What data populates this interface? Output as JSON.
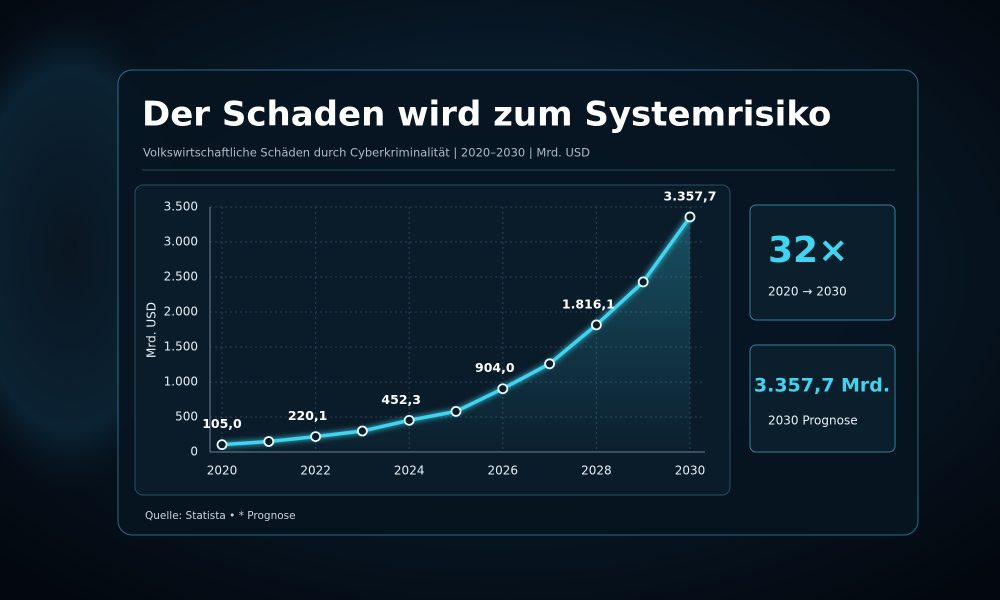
{
  "chart_data": {
    "type": "line",
    "title": "Der Schaden wird zum Systemrisiko",
    "subtitle": "Volkswirtschaftliche Schäden durch Cyberkriminalität  |  2020–2030  |  Mrd. USD",
    "y_label": "Mrd. USD",
    "source": "Quelle: Statista  •  * Prognose",
    "x": [
      2020,
      2021,
      2022,
      2023,
      2024,
      2025,
      2026,
      2027,
      2028,
      2029,
      2030
    ],
    "values": [
      105.0,
      150,
      220.1,
      300,
      452.3,
      580,
      904.0,
      1260,
      1816.1,
      2430,
      3357.7
    ],
    "value_labels": [
      "105,0",
      null,
      "220,1",
      null,
      "452,3",
      null,
      "904,0",
      null,
      "1.816,1",
      null,
      "3.357,7"
    ],
    "color": "#3fd4f0",
    "xlim": [
      2020,
      2030
    ],
    "xticks": [
      2020,
      2022,
      2024,
      2026,
      2028,
      2030
    ],
    "ylim": [
      0,
      3500
    ],
    "yticks": [
      0,
      500,
      {
        "value": 1000,
        "label": "1.000"
      },
      {
        "value": 1500,
        "label": "1.500"
      },
      {
        "value": 2000,
        "label": "2.000"
      },
      {
        "value": 2500,
        "label": "2.500"
      },
      {
        "value": 3000,
        "label": "3.000"
      },
      {
        "value": 3500,
        "label": "3.500"
      }
    ],
    "grid": true
  },
  "stats": [
    {
      "value": "32×",
      "label": "2020 → 2030"
    },
    {
      "value": "3.357,7 Mrd.",
      "label": "2030 Prognose"
    }
  ]
}
